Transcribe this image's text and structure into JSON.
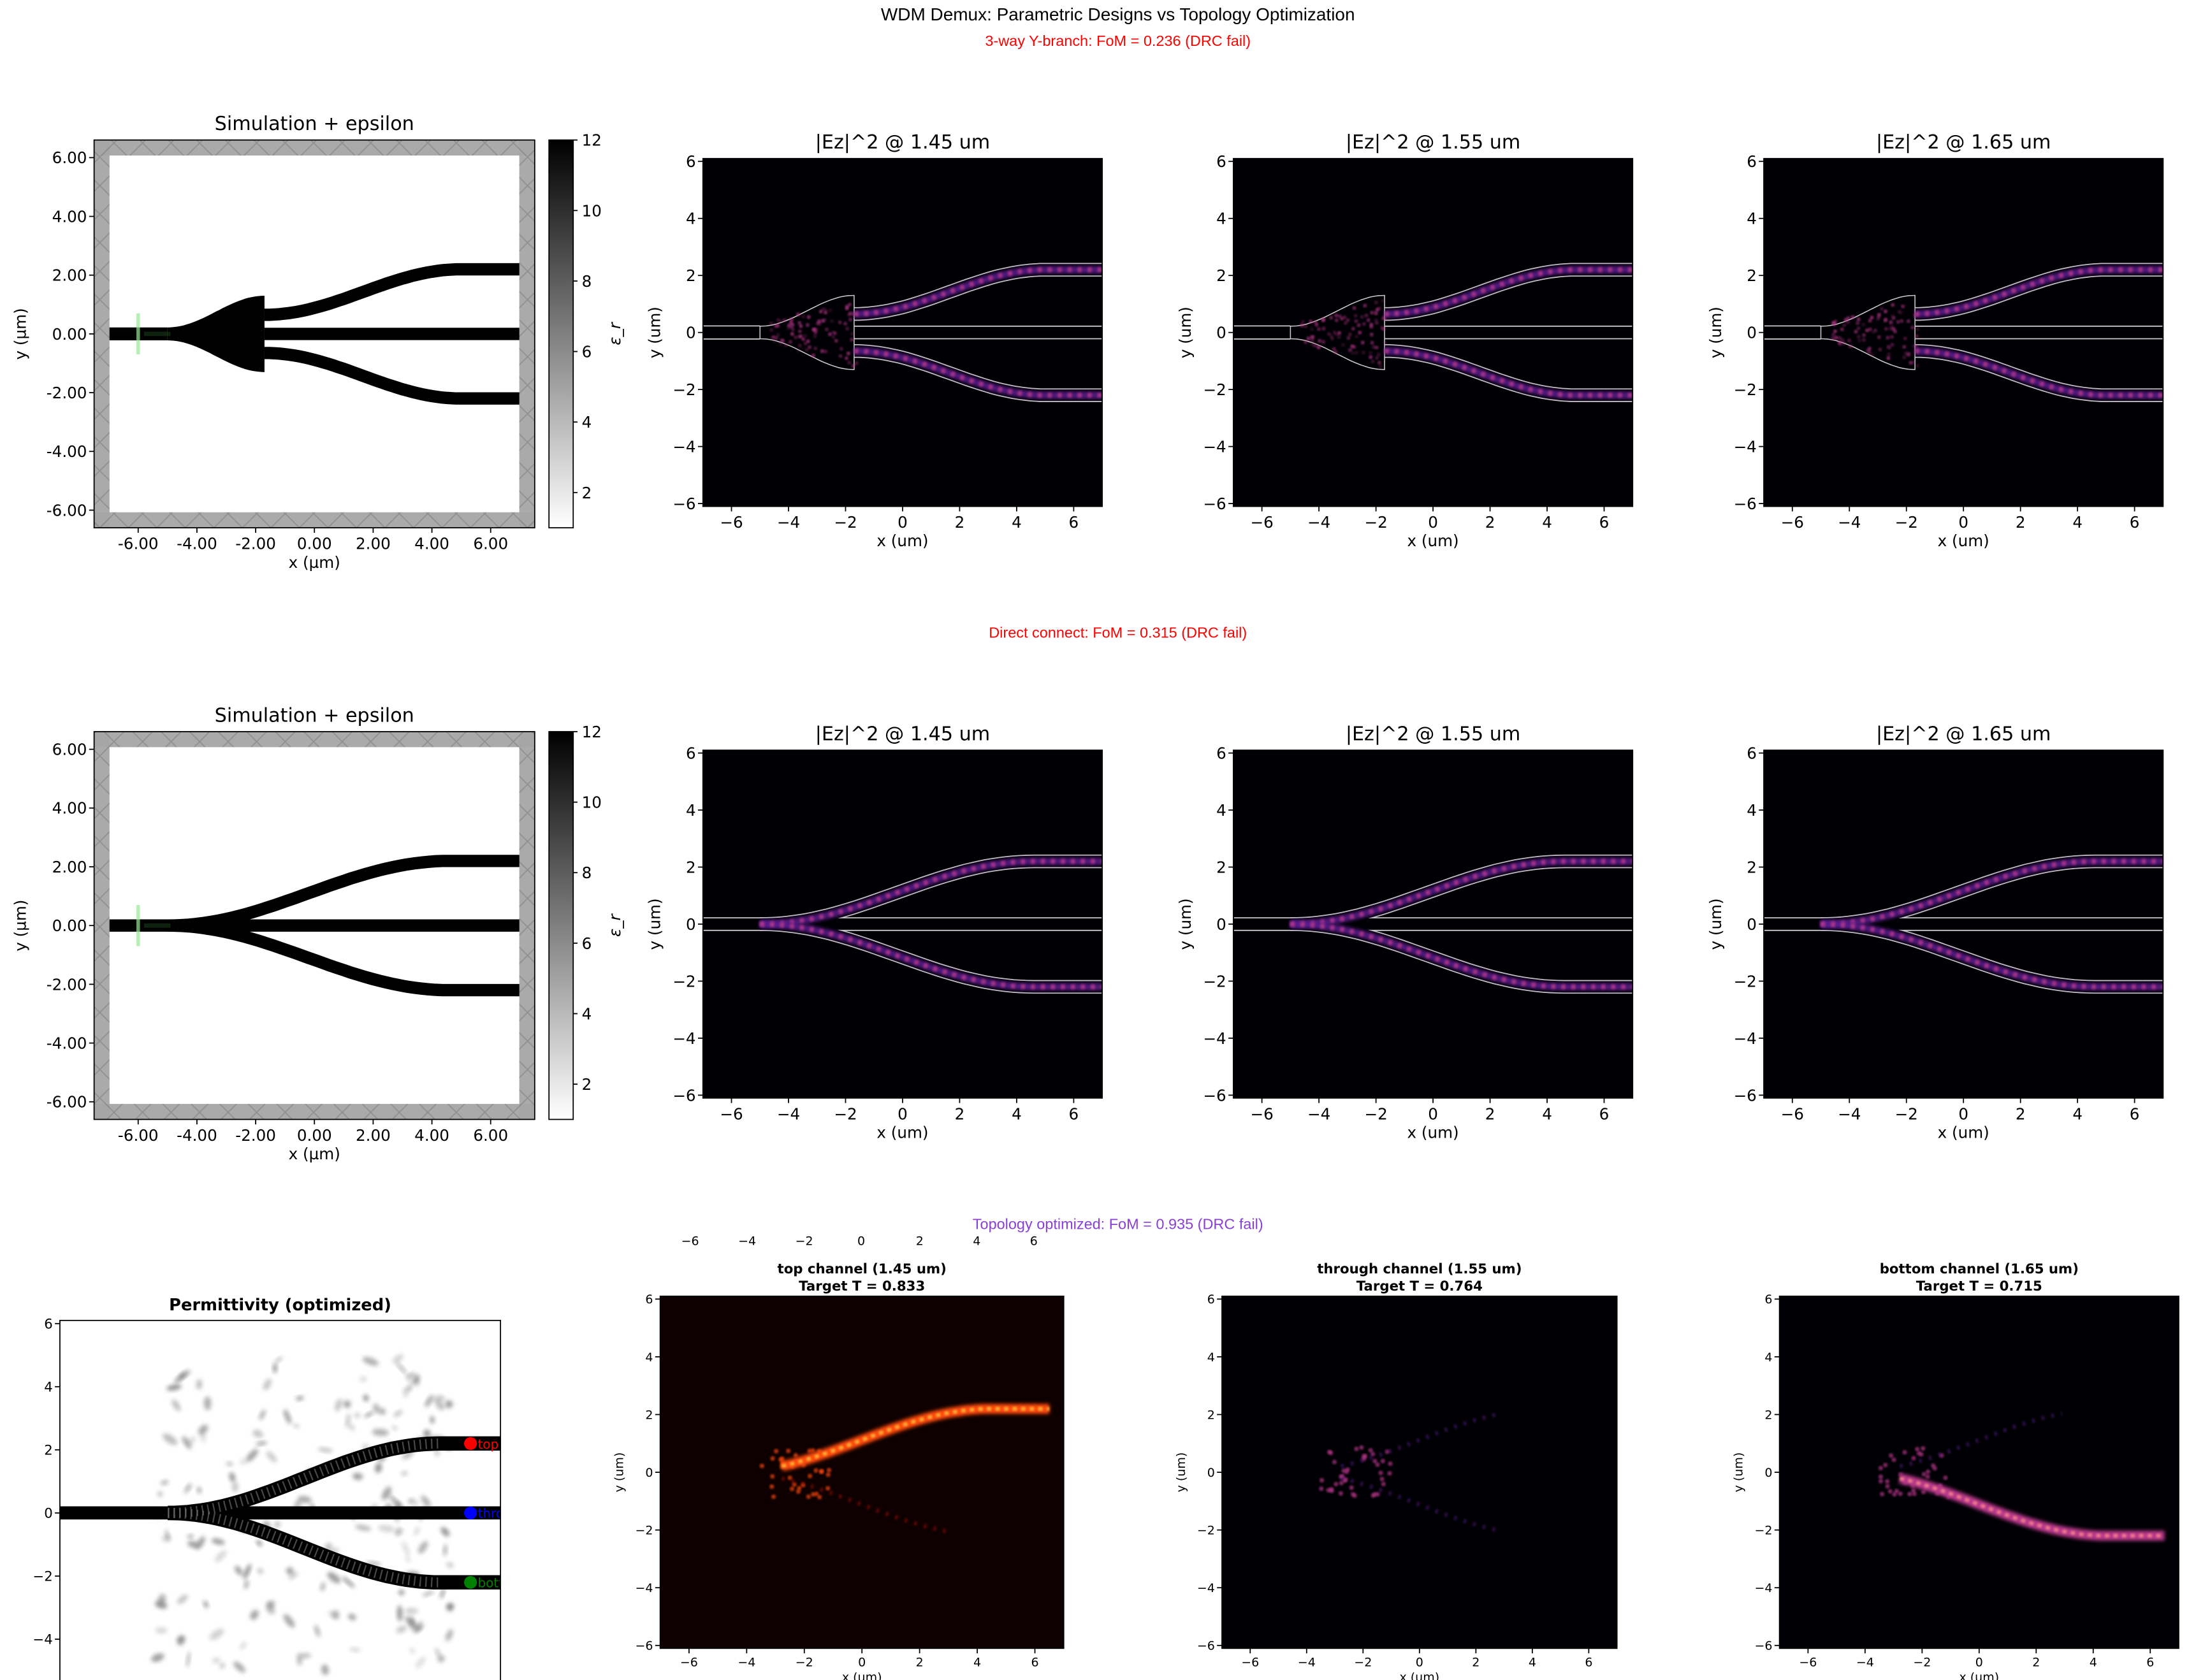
{
  "figure": {
    "title": "WDM Demux: Parametric Designs vs Topology Optimization",
    "rows": [
      {
        "subtitle": "3-way Y-branch: FoM = 0.236 (DRC fail)",
        "color": "#ff0000"
      },
      {
        "subtitle": "Direct connect: FoM = 0.315 (DRC fail)",
        "color": "#ff0000"
      },
      {
        "subtitle": "Topology optimized: FoM = 0.935 (DRC fail)",
        "color": "#8a3fd6"
      }
    ],
    "stray_xticks": [
      "−6",
      "−4",
      "−2",
      "0",
      "2",
      "4",
      "6"
    ]
  },
  "chart_data": [
    {
      "type": "heatmap",
      "design": "3-way Y-branch",
      "kind": "epsilon",
      "title": "Simulation + epsilon",
      "xlabel": "x (µm)",
      "ylabel": "y (µm)",
      "xlim": [
        -7.5,
        7.5
      ],
      "ylim": [
        -6.6,
        6.6
      ],
      "xticks": [
        "-6.00",
        "-4.00",
        "-2.00",
        "0.00",
        "2.00",
        "4.00",
        "6.00"
      ],
      "yticks": [
        "-6.00",
        "-4.00",
        "-2.00",
        "0.00",
        "2.00",
        "4.00",
        "6.00"
      ],
      "colormap": "gray_r",
      "colorbar": {
        "label": "ε_r",
        "range": [
          1,
          12
        ],
        "ticks": [
          "2",
          "4",
          "6",
          "8",
          "10",
          "12"
        ]
      }
    },
    {
      "type": "heatmap",
      "design": "3-way Y-branch",
      "kind": "field",
      "title": "|Ez|^2 @ 1.45 um",
      "xlabel": "x (um)",
      "ylabel": "y (um)",
      "xlim": [
        -7,
        7
      ],
      "ylim": [
        -6.1,
        6.1
      ],
      "xticks": [
        "−6",
        "−4",
        "−2",
        "0",
        "2",
        "4",
        "6"
      ],
      "yticks": [
        "−6",
        "−4",
        "−2",
        "0",
        "2",
        "4",
        "6"
      ],
      "colormap": "magma"
    },
    {
      "type": "heatmap",
      "design": "3-way Y-branch",
      "kind": "field",
      "title": "|Ez|^2 @ 1.55 um",
      "xlabel": "x (um)",
      "ylabel": "y (um)",
      "xlim": [
        -7,
        7
      ],
      "ylim": [
        -6.1,
        6.1
      ],
      "xticks": [
        "−6",
        "−4",
        "−2",
        "0",
        "2",
        "4",
        "6"
      ],
      "yticks": [
        "−6",
        "−4",
        "−2",
        "0",
        "2",
        "4",
        "6"
      ],
      "colormap": "magma"
    },
    {
      "type": "heatmap",
      "design": "3-way Y-branch",
      "kind": "field",
      "title": "|Ez|^2 @ 1.65 um",
      "xlabel": "x (um)",
      "ylabel": "y (um)",
      "xlim": [
        -7,
        7
      ],
      "ylim": [
        -6.1,
        6.1
      ],
      "xticks": [
        "−6",
        "−4",
        "−2",
        "0",
        "2",
        "4",
        "6"
      ],
      "yticks": [
        "−6",
        "−4",
        "−2",
        "0",
        "2",
        "4",
        "6"
      ],
      "colormap": "magma"
    },
    {
      "type": "heatmap",
      "design": "Direct connect",
      "kind": "epsilon",
      "title": "Simulation + epsilon",
      "xlabel": "x (µm)",
      "ylabel": "y (µm)",
      "xlim": [
        -7.5,
        7.5
      ],
      "ylim": [
        -6.6,
        6.6
      ],
      "xticks": [
        "-6.00",
        "-4.00",
        "-2.00",
        "0.00",
        "2.00",
        "4.00",
        "6.00"
      ],
      "yticks": [
        "-6.00",
        "-4.00",
        "-2.00",
        "0.00",
        "2.00",
        "4.00",
        "6.00"
      ],
      "colormap": "gray_r",
      "colorbar": {
        "label": "ε_r",
        "range": [
          1,
          12
        ],
        "ticks": [
          "2",
          "4",
          "6",
          "8",
          "10",
          "12"
        ]
      }
    },
    {
      "type": "heatmap",
      "design": "Direct connect",
      "kind": "field",
      "title": "|Ez|^2 @ 1.45 um",
      "xlabel": "x (um)",
      "ylabel": "y (um)",
      "xlim": [
        -7,
        7
      ],
      "ylim": [
        -6.1,
        6.1
      ],
      "xticks": [
        "−6",
        "−4",
        "−2",
        "0",
        "2",
        "4",
        "6"
      ],
      "yticks": [
        "−6",
        "−4",
        "−2",
        "0",
        "2",
        "4",
        "6"
      ],
      "colormap": "magma"
    },
    {
      "type": "heatmap",
      "design": "Direct connect",
      "kind": "field",
      "title": "|Ez|^2 @ 1.55 um",
      "xlabel": "x (um)",
      "ylabel": "y (um)",
      "xlim": [
        -7,
        7
      ],
      "ylim": [
        -6.1,
        6.1
      ],
      "xticks": [
        "−6",
        "−4",
        "−2",
        "0",
        "2",
        "4",
        "6"
      ],
      "yticks": [
        "−6",
        "−4",
        "−2",
        "0",
        "2",
        "4",
        "6"
      ],
      "colormap": "magma"
    },
    {
      "type": "heatmap",
      "design": "Direct connect",
      "kind": "field",
      "title": "|Ez|^2 @ 1.65 um",
      "xlabel": "x (um)",
      "ylabel": "y (um)",
      "xlim": [
        -7,
        7
      ],
      "ylim": [
        -6.1,
        6.1
      ],
      "xticks": [
        "−6",
        "−4",
        "−2",
        "0",
        "2",
        "4",
        "6"
      ],
      "yticks": [
        "−6",
        "−4",
        "−2",
        "0",
        "2",
        "4",
        "6"
      ],
      "colormap": "magma"
    },
    {
      "type": "heatmap",
      "design": "Topology optimized",
      "kind": "permittivity",
      "title": "Permittivity (optimized)",
      "xlim": [
        -8.2,
        6.5
      ],
      "ylim": [
        -5.6,
        6.1
      ],
      "yticks": [
        "−4",
        "−2",
        "0",
        "2",
        "4",
        "6"
      ],
      "colormap": "gray_r",
      "ports": [
        {
          "label": "top",
          "y": 2.2,
          "color": "#ff0000"
        },
        {
          "label": "through",
          "y": 0,
          "color": "#0000ff"
        },
        {
          "label": "bottom",
          "y": -2.2,
          "color": "#008000"
        }
      ]
    },
    {
      "type": "heatmap",
      "design": "Topology optimized",
      "kind": "field",
      "channel": "top",
      "title": "top channel (1.45 um)",
      "subtitle": "Target T = 0.833",
      "xlabel": "x (um)",
      "ylabel": "y (um)",
      "xlim": [
        -7,
        7
      ],
      "ylim": [
        -6.1,
        6.1
      ],
      "xticks": [
        "−6",
        "−4",
        "−2",
        "0",
        "2",
        "4",
        "6"
      ],
      "yticks": [
        "−6",
        "−4",
        "−2",
        "0",
        "2",
        "4",
        "6"
      ],
      "colormap": "hot"
    },
    {
      "type": "heatmap",
      "design": "Topology optimized",
      "kind": "field",
      "channel": "through",
      "title": "through channel (1.55 um)",
      "subtitle": "Target T = 0.764",
      "xlabel": "x (um)",
      "ylabel": "y (um)",
      "xlim": [
        -7,
        7
      ],
      "ylim": [
        -6.1,
        6.1
      ],
      "xticks": [
        "−6",
        "−4",
        "−2",
        "0",
        "2",
        "4",
        "6"
      ],
      "yticks": [
        "−6",
        "−4",
        "−2",
        "0",
        "2",
        "4",
        "6"
      ],
      "colormap": "magma"
    },
    {
      "type": "heatmap",
      "design": "Topology optimized",
      "kind": "field",
      "channel": "bottom",
      "title": "bottom channel (1.65 um)",
      "subtitle": "Target T = 0.715",
      "xlabel": "x (um)",
      "ylabel": "y (um)",
      "xlim": [
        -7,
        7
      ],
      "ylim": [
        -6.1,
        6.1
      ],
      "xticks": [
        "−6",
        "−4",
        "−2",
        "0",
        "2",
        "4",
        "6"
      ],
      "yticks": [
        "−6",
        "−4",
        "−2",
        "0",
        "2",
        "4",
        "6"
      ],
      "colormap": "magma"
    }
  ]
}
